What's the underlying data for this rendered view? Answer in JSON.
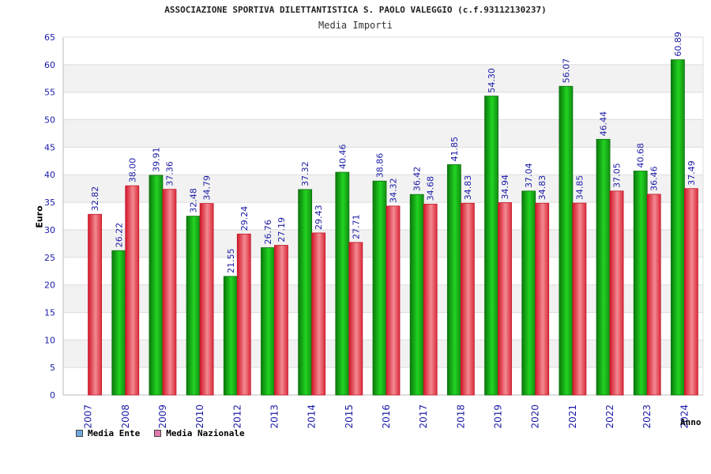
{
  "chart_data": {
    "type": "bar",
    "title": "ASSOCIAZIONE SPORTIVA DILETTANTISTICA S. PAOLO VALEGGIO (c.f.93112130237)",
    "subtitle": "Media Importi",
    "xlabel": "Anno",
    "ylabel": "Euro",
    "ylim": [
      0,
      65
    ],
    "yticks": [
      0,
      5,
      10,
      15,
      20,
      25,
      30,
      35,
      40,
      45,
      50,
      55,
      60,
      65
    ],
    "categories": [
      "2007",
      "2008",
      "2009",
      "2010",
      "2012",
      "2013",
      "2014",
      "2015",
      "2016",
      "2017",
      "2018",
      "2019",
      "2020",
      "2021",
      "2022",
      "2023",
      "2024"
    ],
    "series": [
      {
        "name": "Media Ente",
        "legend_color": "#6fa8dc",
        "bar_color": "#1ca31c",
        "values": [
          null,
          26.22,
          39.91,
          32.48,
          21.55,
          26.76,
          37.32,
          40.46,
          38.86,
          36.42,
          41.85,
          54.3,
          37.04,
          56.07,
          46.44,
          40.68,
          60.89
        ],
        "labels": [
          "",
          "26.22",
          "39.91",
          "32.48",
          "21.55",
          "26.76",
          "37.32",
          "40.46",
          "38.86",
          "36.42",
          "41.85",
          "54.30",
          "37.04",
          "56.07",
          "46.44",
          "40.68",
          "60.89"
        ]
      },
      {
        "name": "Media Nazionale",
        "legend_color": "#e07ab0",
        "bar_color": "#e03040",
        "values": [
          32.82,
          38.0,
          37.36,
          34.79,
          29.24,
          27.19,
          29.43,
          27.71,
          34.32,
          34.68,
          34.83,
          34.94,
          34.83,
          34.85,
          37.05,
          36.46,
          37.49
        ],
        "labels": [
          "32.82",
          "38.00",
          "37.36",
          "34.79",
          "29.24",
          "27.19",
          "29.43",
          "27.71",
          "34.32",
          "34.68",
          "34.83",
          "34.94",
          "34.83",
          "34.85",
          "37.05",
          "36.46",
          "37.49"
        ]
      }
    ],
    "grid": true,
    "legend_position": "bottom-left",
    "colors": {
      "tick_text": "#1a1aa6",
      "label_text": "#1a1aa6",
      "band": "#f2f2f2"
    }
  }
}
